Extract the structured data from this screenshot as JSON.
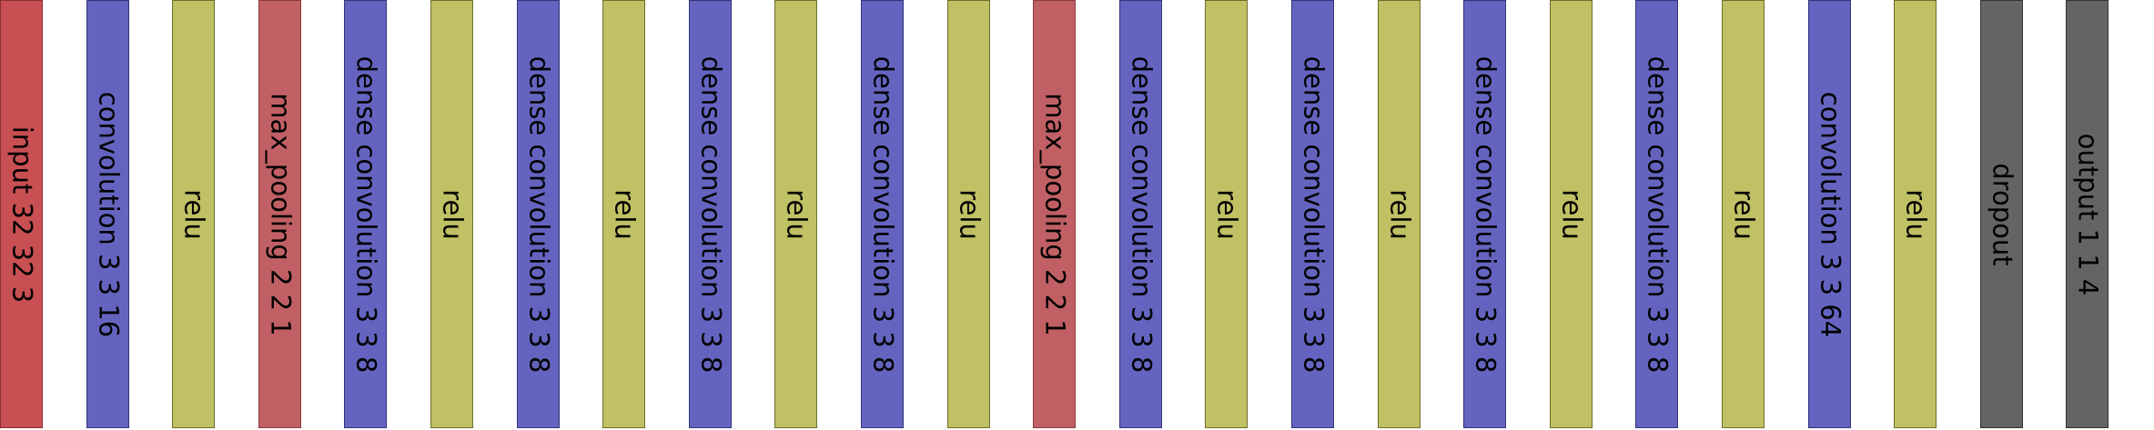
{
  "colors": {
    "input": "#c84f52",
    "pool": "#c06064",
    "conv": "#6464c0",
    "relu": "#c0c064",
    "dropout": "#646464",
    "output": "#646464"
  },
  "layers": [
    {
      "label": "input 32 32 3",
      "kind": "input"
    },
    {
      "label": "convolution 3 3 16",
      "kind": "conv"
    },
    {
      "label": "relu",
      "kind": "relu"
    },
    {
      "label": "max_pooling 2 2 1",
      "kind": "pool"
    },
    {
      "label": "dense convolution 3 3 8",
      "kind": "conv"
    },
    {
      "label": "relu",
      "kind": "relu"
    },
    {
      "label": "dense convolution 3 3 8",
      "kind": "conv"
    },
    {
      "label": "relu",
      "kind": "relu"
    },
    {
      "label": "dense convolution 3 3 8",
      "kind": "conv"
    },
    {
      "label": "relu",
      "kind": "relu"
    },
    {
      "label": "dense convolution 3 3 8",
      "kind": "conv"
    },
    {
      "label": "relu",
      "kind": "relu"
    },
    {
      "label": "max_pooling 2 2 1",
      "kind": "pool"
    },
    {
      "label": "dense convolution 3 3 8",
      "kind": "conv"
    },
    {
      "label": "relu",
      "kind": "relu"
    },
    {
      "label": "dense convolution 3 3 8",
      "kind": "conv"
    },
    {
      "label": "relu",
      "kind": "relu"
    },
    {
      "label": "dense convolution 3 3 8",
      "kind": "conv"
    },
    {
      "label": "relu",
      "kind": "relu"
    },
    {
      "label": "dense convolution 3 3 8",
      "kind": "conv"
    },
    {
      "label": "relu",
      "kind": "relu"
    },
    {
      "label": "convolution 3 3 64",
      "kind": "conv"
    },
    {
      "label": "relu",
      "kind": "relu"
    },
    {
      "label": "dropout",
      "kind": "dropout"
    },
    {
      "label": "output 1 1 4",
      "kind": "output"
    }
  ]
}
